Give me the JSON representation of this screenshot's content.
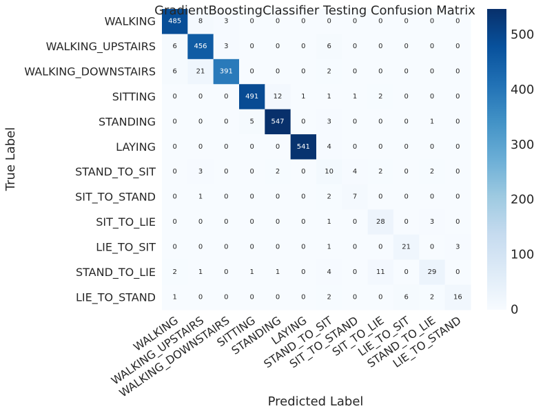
{
  "chart_data": {
    "type": "heatmap",
    "title": "GradientBoostingClassifier Testing Confusion Matrix",
    "xlabel": "Predicted Label",
    "ylabel": "True Label",
    "row_labels": [
      "WALKING",
      "WALKING_UPSTAIRS",
      "WALKING_DOWNSTAIRS",
      "SITTING",
      "STANDING",
      "LAYING",
      "STAND_TO_SIT",
      "SIT_TO_STAND",
      "SIT_TO_LIE",
      "LIE_TO_SIT",
      "STAND_TO_LIE",
      "LIE_TO_STAND"
    ],
    "col_labels": [
      "WALKING",
      "WALKING_UPSTAIRS",
      "WALKING_DOWNSTAIRS",
      "SITTING",
      "STANDING",
      "LAYING",
      "STAND_TO_SIT",
      "SIT_TO_STAND",
      "SIT_TO_LIE",
      "LIE_TO_SIT",
      "STAND_TO_LIE",
      "LIE_TO_STAND"
    ],
    "values": [
      [
        485,
        8,
        3,
        0,
        0,
        0,
        0,
        0,
        0,
        0,
        0,
        0
      ],
      [
        6,
        456,
        3,
        0,
        0,
        0,
        6,
        0,
        0,
        0,
        0,
        0
      ],
      [
        6,
        21,
        391,
        0,
        0,
        0,
        2,
        0,
        0,
        0,
        0,
        0
      ],
      [
        0,
        0,
        0,
        491,
        12,
        1,
        1,
        1,
        2,
        0,
        0,
        0
      ],
      [
        0,
        0,
        0,
        5,
        547,
        0,
        3,
        0,
        0,
        0,
        1,
        0
      ],
      [
        0,
        0,
        0,
        0,
        0,
        541,
        4,
        0,
        0,
        0,
        0,
        0
      ],
      [
        0,
        3,
        0,
        0,
        2,
        0,
        10,
        4,
        2,
        0,
        2,
        0
      ],
      [
        0,
        1,
        0,
        0,
        0,
        0,
        2,
        7,
        0,
        0,
        0,
        0
      ],
      [
        0,
        0,
        0,
        0,
        0,
        0,
        1,
        0,
        28,
        0,
        3,
        0
      ],
      [
        0,
        0,
        0,
        0,
        0,
        0,
        1,
        0,
        0,
        21,
        0,
        3
      ],
      [
        2,
        1,
        0,
        1,
        1,
        0,
        4,
        0,
        11,
        0,
        29,
        0
      ],
      [
        1,
        0,
        0,
        0,
        0,
        0,
        2,
        0,
        0,
        6,
        2,
        16
      ]
    ],
    "colormap": "Blues",
    "colorbar": {
      "min": 0,
      "max": 547,
      "ticks": [
        0,
        100,
        200,
        300,
        400,
        500
      ]
    },
    "grid": false
  }
}
